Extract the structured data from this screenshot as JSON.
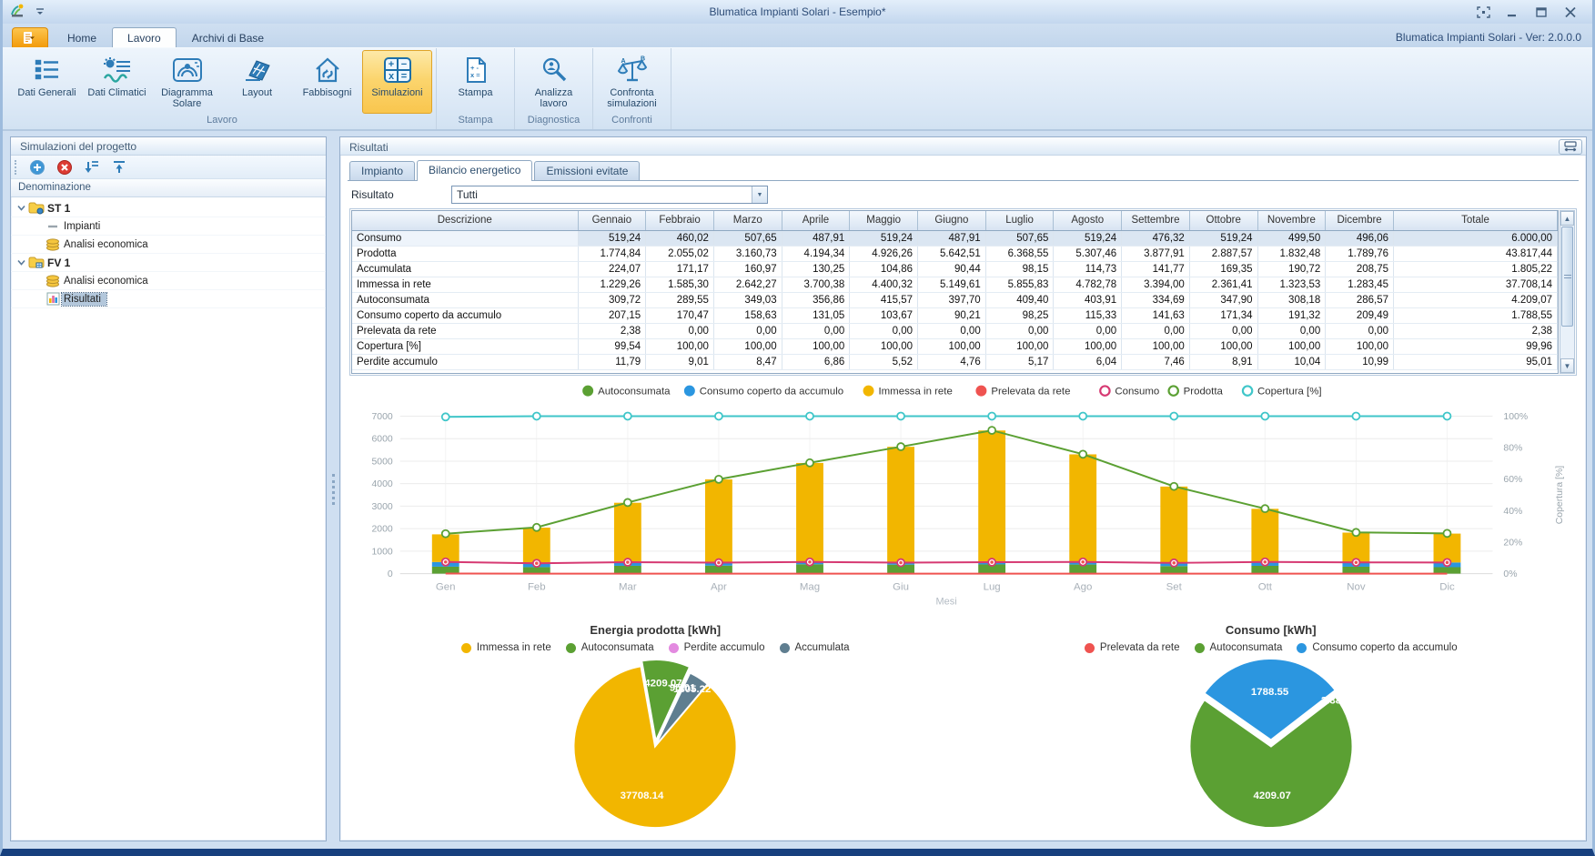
{
  "window": {
    "title": "Blumatica Impianti Solari - Esempio*",
    "version_label": "Blumatica Impianti Solari - Ver: 2.0.0.0"
  },
  "ribbon": {
    "tabs": [
      {
        "label": "Home",
        "active": false
      },
      {
        "label": "Lavoro",
        "active": true
      },
      {
        "label": "Archivi di Base",
        "active": false
      }
    ],
    "groups": [
      {
        "label": "Lavoro",
        "buttons": [
          {
            "label": "Dati Generali",
            "icon": "dati-generali-icon",
            "selected": false
          },
          {
            "label": "Dati Climatici",
            "icon": "dati-climatici-icon",
            "selected": false
          },
          {
            "label": "Diagramma\nSolare",
            "icon": "diagramma-solare-icon",
            "selected": false
          },
          {
            "label": "Layout",
            "icon": "layout-icon",
            "selected": false
          },
          {
            "label": "Fabbisogni",
            "icon": "fabbisogni-icon",
            "selected": false
          },
          {
            "label": "Simulazioni",
            "icon": "simulazioni-icon",
            "selected": true
          }
        ]
      },
      {
        "label": "Stampa",
        "buttons": [
          {
            "label": "Stampa",
            "icon": "stampa-icon",
            "selected": false
          }
        ]
      },
      {
        "label": "Diagnostica",
        "buttons": [
          {
            "label": "Analizza\nlavoro",
            "icon": "analizza-icon",
            "selected": false
          }
        ]
      },
      {
        "label": "Confronti",
        "buttons": [
          {
            "label": "Confronta\nsimulazioni",
            "icon": "confronta-icon",
            "selected": false
          }
        ]
      }
    ]
  },
  "sidebar": {
    "title": "Simulazioni del progetto",
    "tree_header": "Denominazione",
    "tree": [
      {
        "label": "ST 1",
        "level": 0,
        "bold": true,
        "icon": "folder-st-icon",
        "expander": true,
        "selected": false
      },
      {
        "label": "Impianti",
        "level": 1,
        "bold": false,
        "icon": "dash-icon",
        "expander": false,
        "selected": false
      },
      {
        "label": "Analisi economica",
        "level": 1,
        "bold": false,
        "icon": "coins-icon",
        "expander": false,
        "selected": false
      },
      {
        "label": "FV 1",
        "level": 0,
        "bold": true,
        "icon": "folder-fv-icon",
        "expander": true,
        "selected": false
      },
      {
        "label": "Analisi economica",
        "level": 1,
        "bold": false,
        "icon": "coins-icon",
        "expander": false,
        "selected": false
      },
      {
        "label": "Risultati",
        "level": 1,
        "bold": false,
        "icon": "results-icon",
        "expander": false,
        "selected": true
      }
    ]
  },
  "main": {
    "panel_title": "Risultati",
    "tabs": [
      {
        "label": "Impianto",
        "active": false
      },
      {
        "label": "Bilancio energetico",
        "active": true
      },
      {
        "label": "Emissioni evitate",
        "active": false
      }
    ],
    "result_label": "Risultato",
    "result_value": "Tutti",
    "table": {
      "columns": [
        "Descrizione",
        "Gennaio",
        "Febbraio",
        "Marzo",
        "Aprile",
        "Maggio",
        "Giugno",
        "Luglio",
        "Agosto",
        "Settembre",
        "Ottobre",
        "Novembre",
        "Dicembre",
        "Totale"
      ],
      "rows": [
        {
          "label": "Consumo",
          "selected": true,
          "values": [
            "519,24",
            "460,02",
            "507,65",
            "487,91",
            "519,24",
            "487,91",
            "507,65",
            "519,24",
            "476,32",
            "519,24",
            "499,50",
            "496,06"
          ],
          "total": "6.000,00"
        },
        {
          "label": "Prodotta",
          "selected": false,
          "values": [
            "1.774,84",
            "2.055,02",
            "3.160,73",
            "4.194,34",
            "4.926,26",
            "5.642,51",
            "6.368,55",
            "5.307,46",
            "3.877,91",
            "2.887,57",
            "1.832,48",
            "1.789,76"
          ],
          "total": "43.817,44"
        },
        {
          "label": "Accumulata",
          "selected": false,
          "values": [
            "224,07",
            "171,17",
            "160,97",
            "130,25",
            "104,86",
            "90,44",
            "98,15",
            "114,73",
            "141,77",
            "169,35",
            "190,72",
            "208,75"
          ],
          "total": "1.805,22"
        },
        {
          "label": "Immessa in rete",
          "selected": false,
          "values": [
            "1.229,26",
            "1.585,30",
            "2.642,27",
            "3.700,38",
            "4.400,32",
            "5.149,61",
            "5.855,83",
            "4.782,78",
            "3.394,00",
            "2.361,41",
            "1.323,53",
            "1.283,45"
          ],
          "total": "37.708,14"
        },
        {
          "label": "Autoconsumata",
          "selected": false,
          "values": [
            "309,72",
            "289,55",
            "349,03",
            "356,86",
            "415,57",
            "397,70",
            "409,40",
            "403,91",
            "334,69",
            "347,90",
            "308,18",
            "286,57"
          ],
          "total": "4.209,07"
        },
        {
          "label": "Consumo coperto da accumulo",
          "selected": false,
          "values": [
            "207,15",
            "170,47",
            "158,63",
            "131,05",
            "103,67",
            "90,21",
            "98,25",
            "115,33",
            "141,63",
            "171,34",
            "191,32",
            "209,49"
          ],
          "total": "1.788,55"
        },
        {
          "label": "Prelevata da rete",
          "selected": false,
          "values": [
            "2,38",
            "0,00",
            "0,00",
            "0,00",
            "0,00",
            "0,00",
            "0,00",
            "0,00",
            "0,00",
            "0,00",
            "0,00",
            "0,00"
          ],
          "total": "2,38"
        },
        {
          "label": "Copertura [%]",
          "selected": false,
          "values": [
            "99,54",
            "100,00",
            "100,00",
            "100,00",
            "100,00",
            "100,00",
            "100,00",
            "100,00",
            "100,00",
            "100,00",
            "100,00",
            "100,00"
          ],
          "total": "99,96"
        },
        {
          "label": "Perdite accumulo",
          "selected": false,
          "values": [
            "11,79",
            "9,01",
            "8,47",
            "6,86",
            "5,52",
            "4,76",
            "5,17",
            "6,04",
            "7,46",
            "8,91",
            "10,04",
            "10,99"
          ],
          "total": "95,01"
        }
      ]
    }
  },
  "chart_data": [
    {
      "type": "bar",
      "title": "",
      "xlabel": "Mesi",
      "y2label": "Copertura [%]",
      "categories": [
        "Gen",
        "Feb",
        "Mar",
        "Apr",
        "Mag",
        "Giu",
        "Lug",
        "Ago",
        "Set",
        "Ott",
        "Nov",
        "Dic"
      ],
      "ylim": [
        0,
        7000
      ],
      "y_tick_step": 1000,
      "y2lim": [
        0,
        100
      ],
      "y2_tick_step": 20,
      "bar_series": [
        {
          "name": "Autoconsumata",
          "color": "#5ba033",
          "values": [
            309.72,
            289.55,
            349.03,
            356.86,
            415.57,
            397.7,
            409.4,
            403.91,
            334.69,
            347.9,
            308.18,
            286.57
          ]
        },
        {
          "name": "Consumo coperto da accumulo",
          "color": "#2b96e0",
          "values": [
            207.15,
            170.47,
            158.63,
            131.05,
            103.67,
            90.21,
            98.25,
            115.33,
            141.63,
            171.34,
            191.32,
            209.49
          ]
        },
        {
          "name": "Immessa in rete",
          "color": "#f2b600",
          "values": [
            1229.26,
            1585.3,
            2642.27,
            3700.38,
            4400.32,
            5149.61,
            5855.83,
            4782.78,
            3394.0,
            2361.41,
            1323.53,
            1283.45
          ]
        }
      ],
      "line_series": [
        {
          "name": "Prelevata da rete",
          "color": "#ef5350",
          "axis": "left",
          "marker": "none",
          "values": [
            2.38,
            0,
            0,
            0,
            0,
            0,
            0,
            0,
            0,
            0,
            0,
            0
          ]
        },
        {
          "name": "Consumo",
          "color": "#d63972",
          "axis": "left",
          "marker": "ring-dot",
          "values": [
            519.24,
            460.02,
            507.65,
            487.91,
            519.24,
            487.91,
            507.65,
            519.24,
            476.32,
            519.24,
            499.5,
            496.06
          ]
        },
        {
          "name": "Prodotta",
          "color": "#5ba033",
          "axis": "left",
          "marker": "ring",
          "values": [
            1774.84,
            2055.02,
            3160.73,
            4194.34,
            4926.26,
            5642.51,
            6368.55,
            5307.46,
            3877.91,
            2887.57,
            1832.48,
            1789.76
          ]
        },
        {
          "name": "Copertura [%]",
          "color": "#3fc6c9",
          "axis": "right",
          "marker": "ring",
          "values": [
            99.54,
            100,
            100,
            100,
            100,
            100,
            100,
            100,
            100,
            100,
            100,
            100
          ]
        }
      ],
      "legend": [
        {
          "label": "Autoconsumata",
          "color": "#5ba033",
          "style": "filled"
        },
        {
          "label": "Consumo coperto da accumulo",
          "color": "#2b96e0",
          "style": "filled"
        },
        {
          "label": "Immessa in rete",
          "color": "#f2b600",
          "style": "filled"
        },
        {
          "label": "Prelevata da rete",
          "color": "#ef5350",
          "style": "filled"
        },
        {
          "label": "Consumo",
          "color": "#d63972",
          "style": "ring"
        },
        {
          "label": "Prodotta",
          "color": "#5ba033",
          "style": "ring"
        },
        {
          "label": "Copertura [%]",
          "color": "#3fc6c9",
          "style": "ring"
        }
      ]
    },
    {
      "type": "pie",
      "title": "Energia prodotta [kWh]",
      "start_angle": -10,
      "legend": [
        {
          "label": "Immessa in rete",
          "color": "#f2b600"
        },
        {
          "label": "Autoconsumata",
          "color": "#5ba033"
        },
        {
          "label": "Perdite accumulo",
          "color": "#e38ae0"
        },
        {
          "label": "Accumulata",
          "color": "#5f7e90"
        }
      ],
      "slices": [
        {
          "label": "Autoconsumata",
          "value": 4209.07,
          "display": "4209.07",
          "color": "#5ba033",
          "explode": 6,
          "label_r": 0.72
        },
        {
          "label": "Perdite accumulo",
          "value": 95.01,
          "display": "95.01",
          "color": "#e38ae0",
          "explode": 0,
          "label_r": 0.8
        },
        {
          "label": "Accumulata",
          "value": 1805.22,
          "display": "1805.22",
          "color": "#5f7e90",
          "explode": 0,
          "label_r": 0.84
        },
        {
          "label": "Immessa in rete",
          "value": 37708.14,
          "display": "37708.14",
          "color": "#f2b600",
          "explode": 0,
          "label_r": 0.62
        }
      ]
    },
    {
      "type": "pie",
      "title": "Consumo [kWh]",
      "start_angle": -55,
      "legend": [
        {
          "label": "Prelevata da rete",
          "color": "#ef5350"
        },
        {
          "label": "Autoconsumata",
          "color": "#5ba033"
        },
        {
          "label": "Consumo coperto da accumulo",
          "color": "#2b96e0"
        }
      ],
      "slices": [
        {
          "label": "Consumo coperto da accumulo",
          "value": 1788.55,
          "display": "1788.55",
          "color": "#2b96e0",
          "explode": 7,
          "label_r": 0.6
        },
        {
          "label": "Prelevata da rete",
          "value": 2.38,
          "display": "2.38",
          "color": "#ef5350",
          "explode": 0,
          "label_r": 0.93
        },
        {
          "label": "Autoconsumata",
          "value": 4209.07,
          "display": "4209.07",
          "color": "#5ba033",
          "explode": 0,
          "label_r": 0.6
        }
      ]
    }
  ],
  "colors": {
    "accent_orange": "#f29b0b",
    "ribbon_icon_blue": "#2e7cb8",
    "selected_button_bg": "#fbd56e",
    "bar_yellow": "#f2b600",
    "bar_green": "#5ba033",
    "bar_blue": "#2b96e0",
    "line_red": "#ef5350",
    "line_pink": "#d63972",
    "line_teal": "#3fc6c9",
    "pie_orchid": "#e38ae0",
    "pie_slate": "#5f7e90",
    "window_border": "#17407e"
  }
}
